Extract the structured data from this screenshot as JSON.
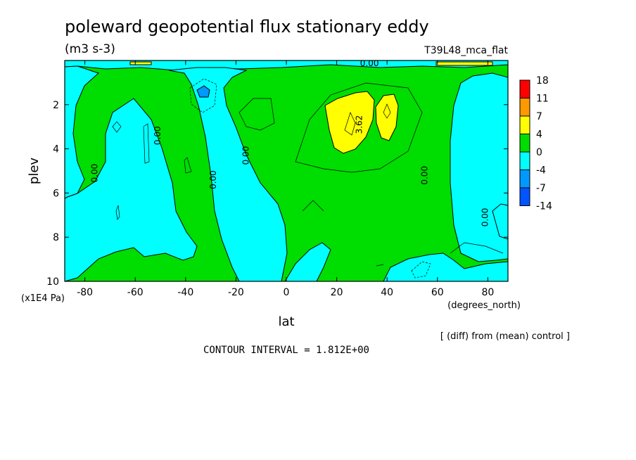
{
  "chart_data": {
    "type": "heatmap",
    "title": "poleward geopotential flux stationary eddy",
    "units": "(m3 s-3)",
    "experiment": "T39L48_mca_flat",
    "xlabel": "lat",
    "x_units": "(degrees_north)",
    "ylabel": "plev",
    "y_units": "(x1E4 Pa)",
    "xlim": [
      -88,
      88
    ],
    "ylim": [
      0,
      10
    ],
    "y_inverted": true,
    "x_ticks": [
      -80,
      -60,
      -40,
      -20,
      0,
      20,
      40,
      60,
      80
    ],
    "x_tick_labels": [
      "-80",
      "-60",
      "-40",
      "-20",
      "0",
      "20",
      "40",
      "60",
      "80"
    ],
    "y_ticks": [
      2,
      4,
      6,
      8,
      10
    ],
    "y_tick_labels": [
      "2",
      "4",
      "6",
      "8",
      "10"
    ],
    "contour_labels": [
      {
        "text": "0.00",
        "x": 33,
        "y": 0.25
      },
      {
        "text": "0.00",
        "x": -75,
        "y": 5.1
      },
      {
        "text": "0.00",
        "x": -50,
        "y": 3.4
      },
      {
        "text": "0.00",
        "x": -28,
        "y": 5.4
      },
      {
        "text": "0.00",
        "x": -15,
        "y": 4.3
      },
      {
        "text": "3.62",
        "x": 30,
        "y": 2.9
      },
      {
        "text": "0.00",
        "x": 56,
        "y": 5.2
      },
      {
        "text": "0.00",
        "x": 80,
        "y": 7.1
      }
    ],
    "colorbar": {
      "levels": [
        "18",
        "11",
        "7",
        "4",
        "0",
        "-4",
        "-7",
        "-14"
      ],
      "colors": [
        "#ff0000",
        "#ff9900",
        "#ffff00",
        "#00dd00",
        "#00ffff",
        "#0099ff",
        "#0055ff"
      ]
    },
    "regions": {
      "background_color": "#00dd00",
      "negative_color": "#00ffff",
      "positive_color": "#ffff00"
    },
    "subtitle": "[ (diff) from (mean) control ]",
    "contour_interval_text": "CONTOUR INTERVAL = 1.812E+00"
  }
}
